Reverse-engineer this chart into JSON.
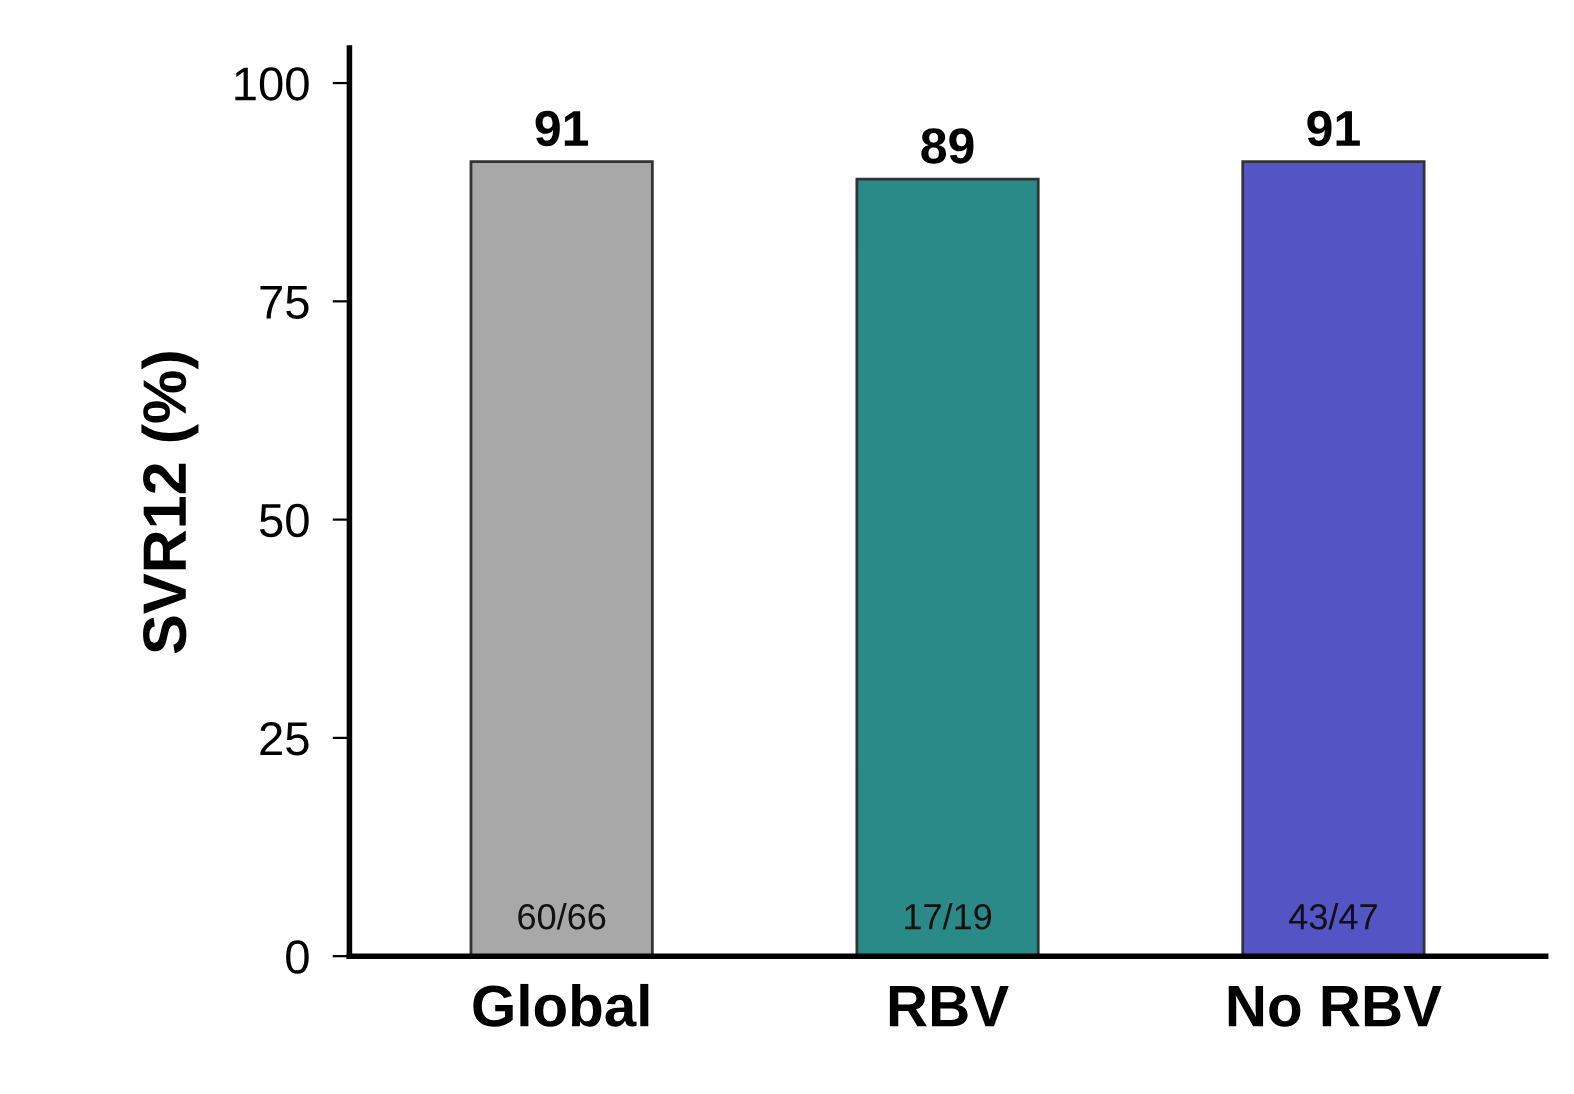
{
  "chart_data": {
    "type": "bar",
    "ylabel": "SVR12 (%)",
    "categories": [
      "Global",
      "RBV",
      "No RBV"
    ],
    "values": [
      91,
      89,
      91
    ],
    "colors": [
      "#a8a8a8",
      "#2a8a87",
      "#5454c4"
    ],
    "data_labels": true,
    "ylim": [
      0,
      104
    ],
    "yticks": [
      0,
      25,
      50,
      75,
      100
    ],
    "grid": false,
    "annotations": [
      "60/66",
      "17/19",
      "43/47"
    ]
  }
}
